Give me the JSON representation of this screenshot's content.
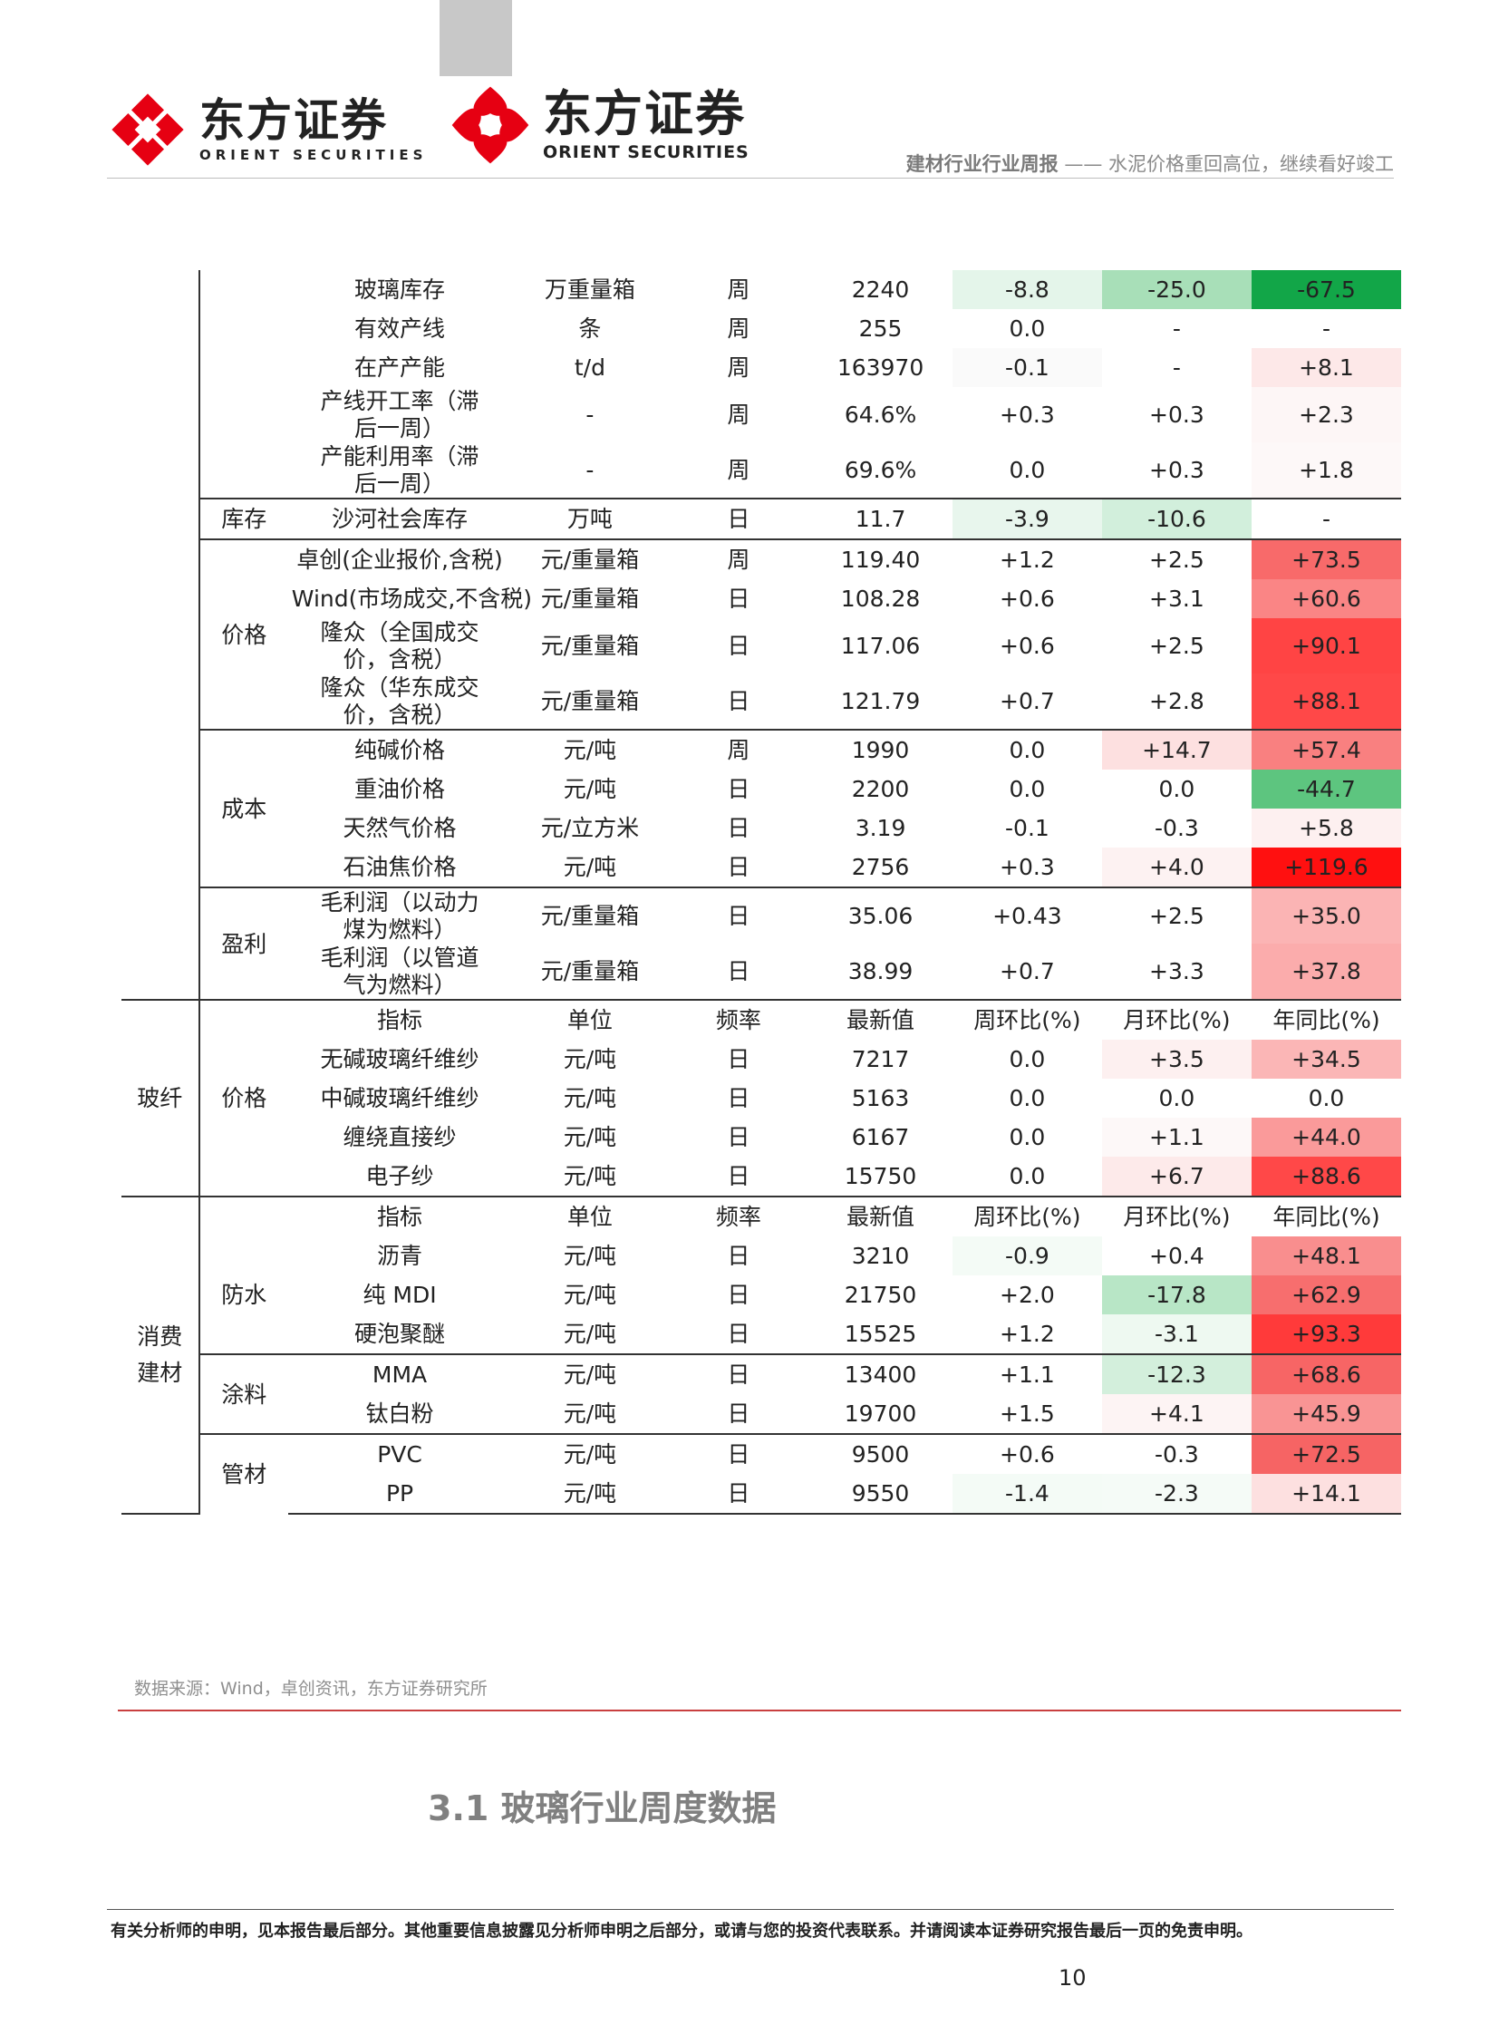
{
  "header": {
    "logo_cn": "东方证券",
    "logo1_en": "ORIENT SECURITIES",
    "logo2_en": "ORIENT SECURITIES",
    "title_main": "建材行业行业周报",
    "title_sep": " —— ",
    "title_sub": "水泥价格重回高位，继续看好竣工"
  },
  "colors": {
    "red_strong": "#ff1f1f",
    "red": "#ff4d4d",
    "green_strong": "#1fa84a",
    "green": "#5cc87e"
  },
  "rows": [
    {
      "c1": "",
      "c2": "",
      "name": "玻璃库存",
      "unit": "万重量箱",
      "freq": "周",
      "latest": "2240",
      "wk": "-8.8",
      "mo": "-25.0",
      "yr": "-67.5",
      "wk_bg": "#e4f5ea",
      "mo_bg": "#a8dfb8",
      "yr_bg": "#12a648",
      "yr_fg": "#222"
    },
    {
      "c1": "",
      "c2": "",
      "name": "有效产线",
      "unit": "条",
      "freq": "周",
      "latest": "255",
      "wk": "0.0",
      "mo": "-",
      "yr": "-",
      "wk_bg": "",
      "mo_bg": "",
      "yr_bg": ""
    },
    {
      "c1": "",
      "c2": "",
      "name": "在产产能",
      "unit": "t/d",
      "freq": "周",
      "latest": "163970",
      "wk": "-0.1",
      "mo": "-",
      "yr": "+8.1",
      "wk_bg": "#fafafa",
      "mo_bg": "",
      "yr_bg": "#fde8e8"
    },
    {
      "c1": "",
      "c2": "",
      "name": "产线开工率（滞后一周）",
      "unit": "-",
      "freq": "周",
      "latest": "64.6%",
      "wk": "+0.3",
      "mo": "+0.3",
      "yr": "+2.3",
      "wk_bg": "",
      "mo_bg": "",
      "yr_bg": "#fdf6f6"
    },
    {
      "c1": "",
      "c2": "",
      "name": "产能利用率（滞后一周）",
      "unit": "-",
      "freq": "周",
      "latest": "69.6%",
      "wk": "0.0",
      "mo": "+0.3",
      "yr": "+1.8",
      "wk_bg": "",
      "mo_bg": "",
      "yr_bg": "#fdf8f8"
    },
    {
      "c1": "",
      "c2": "库存",
      "name": "沙河社会库存",
      "unit": "万吨",
      "freq": "日",
      "latest": "11.7",
      "wk": "-3.9",
      "mo": "-10.6",
      "yr": "-",
      "wk_bg": "#e8f6ed",
      "mo_bg": "#d2efdc",
      "yr_bg": ""
    },
    {
      "c1": "",
      "c2": "价格",
      "name": "卓创(企业报价,含税)",
      "unit": "元/重量箱",
      "freq": "周",
      "latest": "119.40",
      "wk": "+1.2",
      "mo": "+2.5",
      "yr": "+73.5",
      "wk_bg": "",
      "mo_bg": "",
      "yr_bg": "#f86a6a"
    },
    {
      "c1": "",
      "c2": "",
      "name": "Wind(市场成交,不含税)",
      "unit": "元/重量箱",
      "freq": "日",
      "latest": "108.28",
      "wk": "+0.6",
      "mo": "+3.1",
      "yr": "+60.6",
      "wk_bg": "",
      "mo_bg": "",
      "yr_bg": "#fa8585"
    },
    {
      "c1": "",
      "c2": "",
      "name": "隆众（全国成交价，含税）",
      "unit": "元/重量箱",
      "freq": "日",
      "latest": "117.06",
      "wk": "+0.6",
      "mo": "+2.5",
      "yr": "+90.1",
      "wk_bg": "",
      "mo_bg": "",
      "yr_bg": "#ff4444"
    },
    {
      "c1": "",
      "c2": "",
      "name": "隆众（华东成交价，含税）",
      "unit": "元/重量箱",
      "freq": "日",
      "latest": "121.79",
      "wk": "+0.7",
      "mo": "+2.8",
      "yr": "+88.1",
      "wk_bg": "",
      "mo_bg": "",
      "yr_bg": "#ff4848"
    },
    {
      "c1": "",
      "c2": "成本",
      "name": "纯碱价格",
      "unit": "元/吨",
      "freq": "周",
      "latest": "1990",
      "wk": "0.0",
      "mo": "+14.7",
      "yr": "+57.4",
      "wk_bg": "",
      "mo_bg": "#fde0e0",
      "yr_bg": "#f98080"
    },
    {
      "c1": "",
      "c2": "",
      "name": "重油价格",
      "unit": "元/吨",
      "freq": "日",
      "latest": "2200",
      "wk": "0.0",
      "mo": "0.0",
      "yr": "-44.7",
      "wk_bg": "",
      "mo_bg": "",
      "yr_bg": "#5dc57f"
    },
    {
      "c1": "",
      "c2": "",
      "name": "天然气价格",
      "unit": "元/立方米",
      "freq": "日",
      "latest": "3.19",
      "wk": "-0.1",
      "mo": "-0.3",
      "yr": "+5.8",
      "wk_bg": "",
      "mo_bg": "",
      "yr_bg": "#fdf0f0"
    },
    {
      "c1": "",
      "c2": "",
      "name": "石油焦价格",
      "unit": "元/吨",
      "freq": "日",
      "latest": "2756",
      "wk": "+0.3",
      "mo": "+4.0",
      "yr": "+119.6",
      "wk_bg": "",
      "mo_bg": "#fdf2f2",
      "yr_bg": "#ff1010"
    },
    {
      "c1": "",
      "c2": "盈利",
      "name": "毛利润（以动力煤为燃料）",
      "unit": "元/重量箱",
      "freq": "日",
      "latest": "35.06",
      "wk": "+0.43",
      "mo": "+2.5",
      "yr": "+35.0",
      "wk_bg": "",
      "mo_bg": "",
      "yr_bg": "#fbb4b4"
    },
    {
      "c1": "",
      "c2": "",
      "name": "毛利润（以管道气为燃料）",
      "unit": "元/重量箱",
      "freq": "日",
      "latest": "38.99",
      "wk": "+0.7",
      "mo": "+3.3",
      "yr": "+37.8",
      "wk_bg": "",
      "mo_bg": "",
      "yr_bg": "#fbacac"
    }
  ],
  "fiber": {
    "group": "玻纤",
    "sub": "价格",
    "header": [
      "指标",
      "单位",
      "频率",
      "最新值",
      "周环比(%)",
      "月环比(%)",
      "年同比(%)"
    ],
    "rows": [
      {
        "name": "无碱玻璃纤维纱",
        "unit": "元/吨",
        "freq": "日",
        "latest": "7217",
        "wk": "0.0",
        "mo": "+3.5",
        "yr": "+34.5",
        "mo_bg": "#fdf0f0",
        "yr_bg": "#fbb6b6"
      },
      {
        "name": "中碱玻璃纤维纱",
        "unit": "元/吨",
        "freq": "日",
        "latest": "5163",
        "wk": "0.0",
        "mo": "0.0",
        "yr": "0.0",
        "mo_bg": "",
        "yr_bg": ""
      },
      {
        "name": "缠绕直接纱",
        "unit": "元/吨",
        "freq": "日",
        "latest": "6167",
        "wk": "0.0",
        "mo": "+1.1",
        "yr": "+44.0",
        "mo_bg": "#fdf8f8",
        "yr_bg": "#fa9a9a"
      },
      {
        "name": "电子纱",
        "unit": "元/吨",
        "freq": "日",
        "latest": "15750",
        "wk": "0.0",
        "mo": "+6.7",
        "yr": "+88.6",
        "mo_bg": "#fdeaea",
        "yr_bg": "#ff4848"
      }
    ]
  },
  "consumer": {
    "group_line1": "消费",
    "group_line2": "建材",
    "header": [
      "指标",
      "单位",
      "频率",
      "最新值",
      "周环比(%)",
      "月环比(%)",
      "年同比(%)"
    ],
    "subgroups": [
      {
        "label": "防水",
        "rows": [
          {
            "name": "沥青",
            "unit": "元/吨",
            "freq": "日",
            "latest": "3210",
            "wk": "-0.9",
            "mo": "+0.4",
            "yr": "+48.1",
            "wk_bg": "#f4fbf6",
            "mo_bg": "",
            "yr_bg": "#f98e8e"
          },
          {
            "name": "纯 MDI",
            "unit": "元/吨",
            "freq": "日",
            "latest": "21750",
            "wk": "+2.0",
            "mo": "-17.8",
            "yr": "+62.9",
            "wk_bg": "",
            "mo_bg": "#b8e6c6",
            "yr_bg": "#f76e6e"
          },
          {
            "name": "硬泡聚醚",
            "unit": "元/吨",
            "freq": "日",
            "latest": "15525",
            "wk": "+1.2",
            "mo": "-3.1",
            "yr": "+93.3",
            "wk_bg": "",
            "mo_bg": "#eef9f1",
            "yr_bg": "#ff3a3a"
          }
        ]
      },
      {
        "label": "涂料",
        "rows": [
          {
            "name": "MMA",
            "unit": "元/吨",
            "freq": "日",
            "latest": "13400",
            "wk": "+1.1",
            "mo": "-12.3",
            "yr": "+68.6",
            "wk_bg": "",
            "mo_bg": "#d3efdc",
            "yr_bg": "#f76565"
          },
          {
            "name": "钛白粉",
            "unit": "元/吨",
            "freq": "日",
            "latest": "19700",
            "wk": "+1.5",
            "mo": "+4.1",
            "yr": "+45.9",
            "wk_bg": "",
            "mo_bg": "#fdf4f4",
            "yr_bg": "#f99494"
          }
        ]
      },
      {
        "label": "管材",
        "rows": [
          {
            "name": "PVC",
            "unit": "元/吨",
            "freq": "日",
            "latest": "9500",
            "wk": "+0.6",
            "mo": "-0.3",
            "yr": "+72.5",
            "wk_bg": "",
            "mo_bg": "",
            "yr_bg": "#f66464"
          },
          {
            "name": "PP",
            "unit": "元/吨",
            "freq": "日",
            "latest": "9550",
            "wk": "-1.4",
            "mo": "-2.3",
            "yr": "+14.1",
            "wk_bg": "#f4fbf6",
            "mo_bg": "#f5fbf7",
            "yr_bg": "#fde0e0"
          }
        ]
      }
    ]
  },
  "source": "数据来源：Wind，卓创资讯，东方证券研究所",
  "section_title": "3.1 玻璃行业周度数据",
  "footer_text": "有关分析师的申明，见本报告最后部分。其他重要信息披露见分析师申明之后部分，或请与您的投资代表联系。并请阅读本证券研究报告最后一页的免责申明。",
  "page_number": "10"
}
